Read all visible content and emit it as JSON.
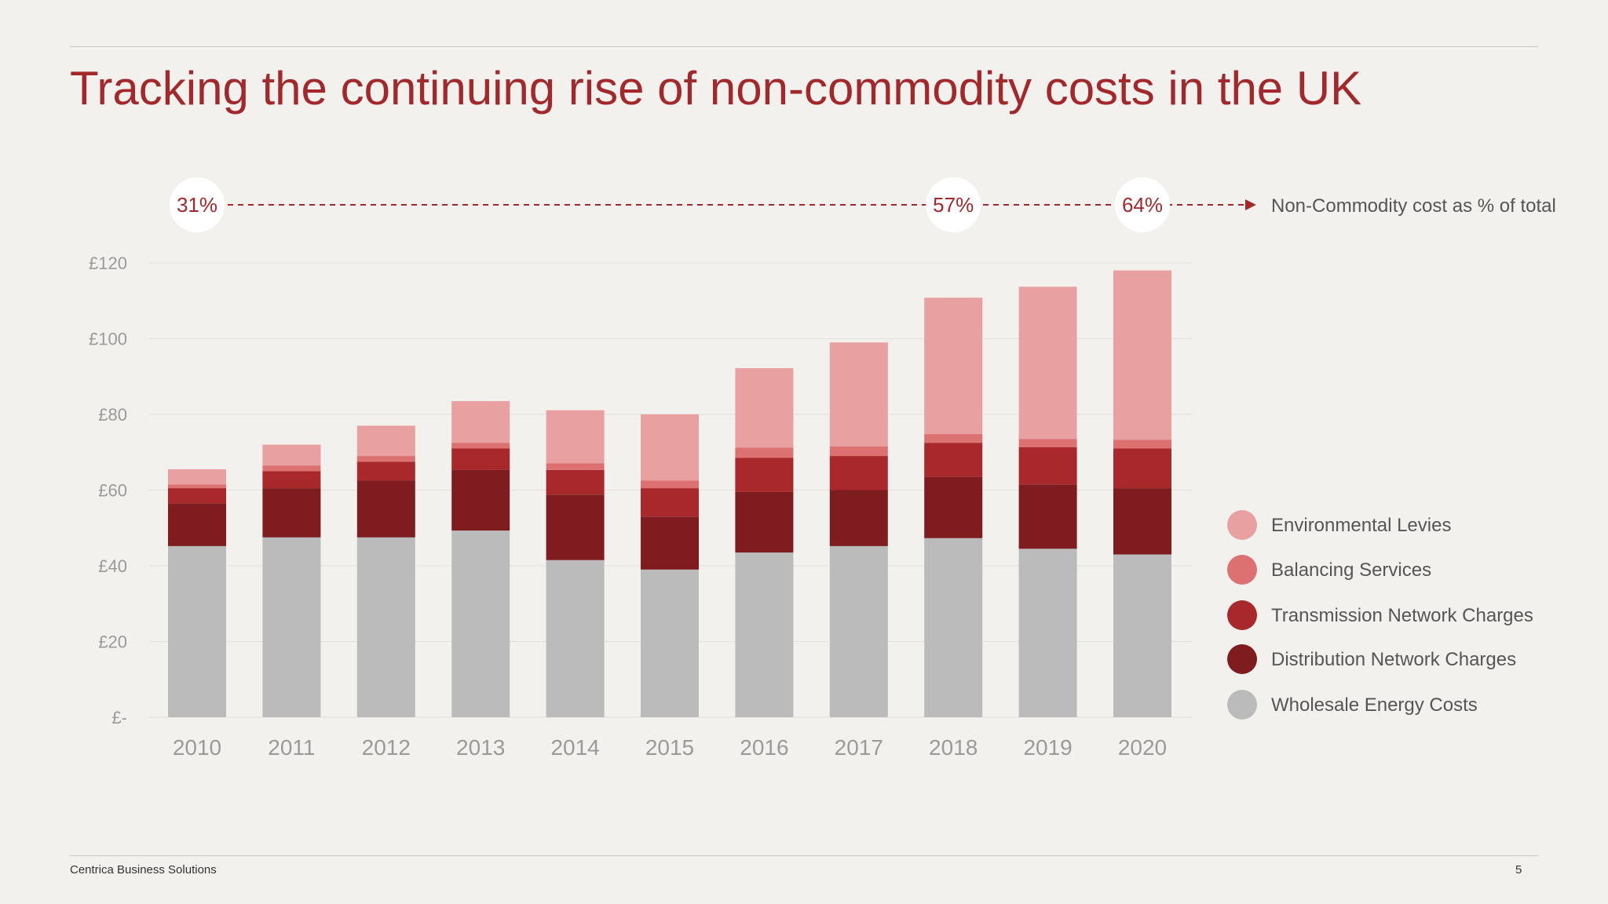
{
  "title": "Tracking the continuing rise of non-commodity costs in the UK",
  "footer": {
    "company": "Centrica Business Solutions",
    "page_number": "5"
  },
  "chart_data": {
    "type": "bar",
    "stacked": true,
    "title": "Tracking the continuing rise of non-commodity costs in the UK",
    "xlabel": "",
    "ylabel": "",
    "ylim": [
      0,
      120
    ],
    "yticks": [
      0,
      20,
      40,
      60,
      80,
      100,
      120
    ],
    "ytick_labels": [
      "£-",
      "£20",
      "£40",
      "£60",
      "£80",
      "£100",
      "£120"
    ],
    "grid": true,
    "legend_position": "right",
    "categories": [
      "2010",
      "2011",
      "2012",
      "2013",
      "2014",
      "2015",
      "2016",
      "2017",
      "2018",
      "2019",
      "2020"
    ],
    "series": [
      {
        "name": "Wholesale Energy Costs",
        "color": "#bbbbbb",
        "values": [
          45.2,
          47.5,
          47.5,
          49.3,
          41.5,
          39.0,
          43.5,
          45.2,
          47.3,
          44.5,
          43.0
        ]
      },
      {
        "name": "Distribution Network Charges",
        "color": "#7e1c1f",
        "values": [
          11.3,
          13.0,
          15.0,
          16.0,
          17.3,
          14.0,
          16.0,
          14.8,
          16.2,
          17.0,
          17.5
        ]
      },
      {
        "name": "Transmission Network Charges",
        "color": "#a8282b",
        "values": [
          4.0,
          4.5,
          5.0,
          5.7,
          6.5,
          7.5,
          9.0,
          9.0,
          9.0,
          9.8,
          10.5
        ]
      },
      {
        "name": "Balancing Services",
        "color": "#dd7070",
        "values": [
          1.0,
          1.5,
          1.5,
          1.5,
          1.8,
          2.0,
          2.7,
          2.5,
          2.3,
          2.2,
          2.3
        ]
      },
      {
        "name": "Environmental Levies",
        "color": "#e8a0a0",
        "values": [
          4.0,
          5.5,
          8.0,
          11.0,
          14.0,
          17.5,
          21.0,
          27.5,
          36.0,
          40.2,
          44.7
        ]
      }
    ],
    "legend_order": [
      "Environmental Levies",
      "Balancing Services",
      "Transmission Network Charges",
      "Distribution Network Charges",
      "Wholesale Energy Costs"
    ],
    "annotations": {
      "label": "Non-Commodity cost as % of total",
      "points": [
        {
          "category": "2010",
          "text": "31%"
        },
        {
          "category": "2018",
          "text": "57%"
        },
        {
          "category": "2020",
          "text": "64%"
        }
      ]
    }
  }
}
